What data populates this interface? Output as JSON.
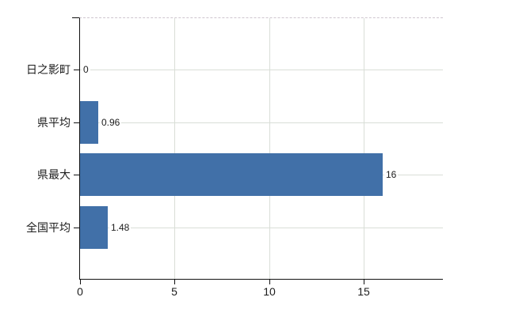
{
  "chart_data": {
    "type": "bar",
    "orientation": "horizontal",
    "title": "",
    "xlabel": "",
    "ylabel": "",
    "categories": [
      "日之影町",
      "県平均",
      "県最大",
      "全国平均"
    ],
    "values": [
      0,
      0.96,
      16,
      1.48
    ],
    "value_labels": [
      "0",
      "0.96",
      "16",
      "1.48"
    ],
    "x_ticks": [
      0,
      5,
      10,
      15
    ],
    "x_tick_labels": [
      "0",
      "5",
      "10",
      "15"
    ],
    "xlim": [
      0,
      19.2
    ],
    "grid": true,
    "legend": "none",
    "colors": {
      "bar": "#4170a8",
      "gridline": "#d9ded7",
      "axis": "#111111",
      "text": "#1c1c1c",
      "plot_top_border": "#cfc6cf",
      "background": "#ffffff"
    }
  }
}
